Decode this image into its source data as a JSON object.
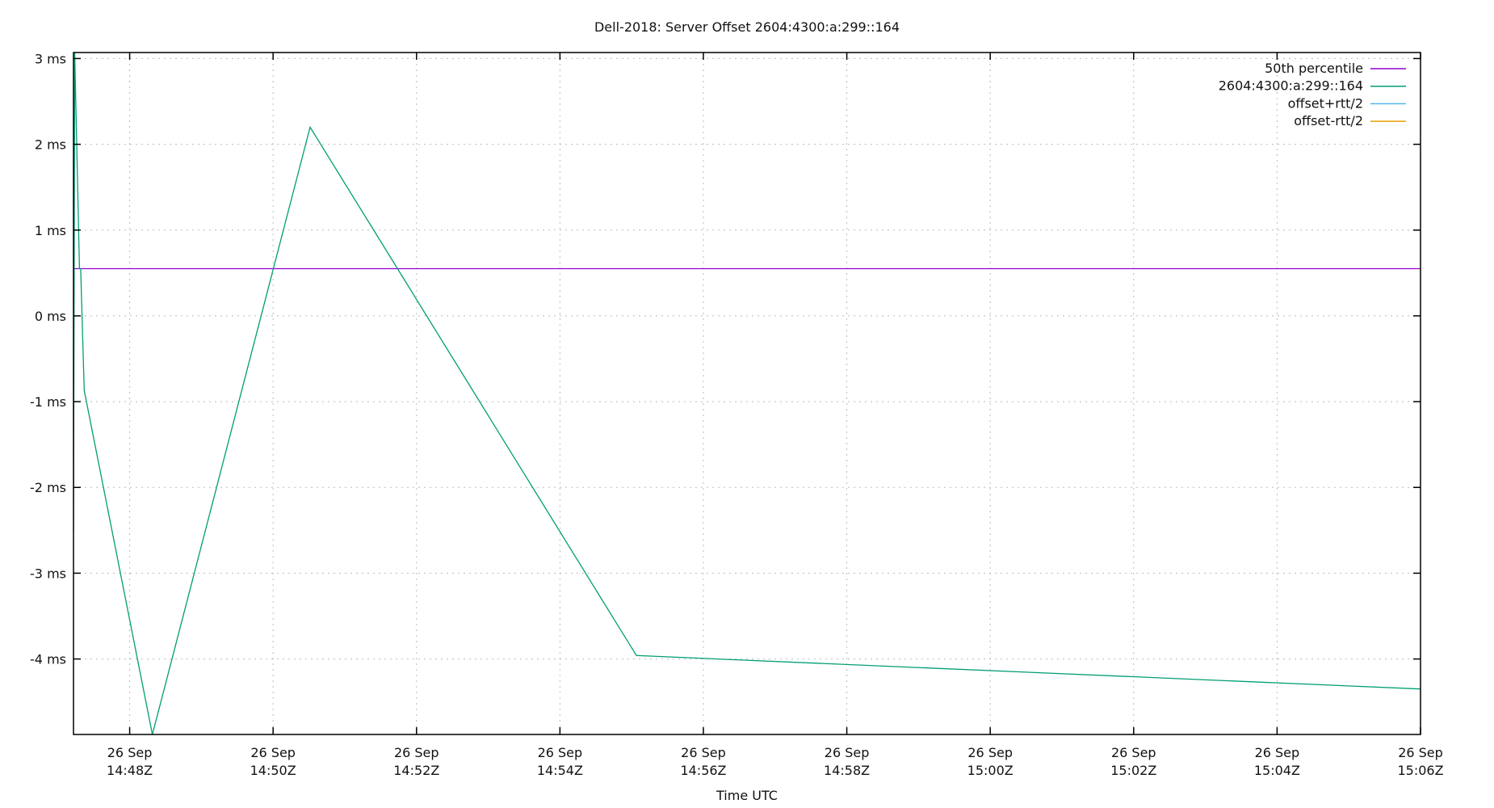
{
  "chart_data": {
    "type": "line",
    "title": "Dell-2018: Server Offset 2604:4300:a:299::164",
    "xlabel": "Time UTC",
    "ylabel": "",
    "xlim": [
      "2018-09-26T14:47:13Z",
      "2018-09-26T15:06:00Z"
    ],
    "ylim": [
      -4.88,
      3.07
    ],
    "y_unit": "ms",
    "grid": true,
    "legend_placement": "top-right",
    "yticks": [
      {
        "value": 3,
        "label": "3 ms"
      },
      {
        "value": 2,
        "label": "2 ms"
      },
      {
        "value": 1,
        "label": "1 ms"
      },
      {
        "value": 0,
        "label": "0 ms"
      },
      {
        "value": -1,
        "label": "-1 ms"
      },
      {
        "value": -2,
        "label": "-2 ms"
      },
      {
        "value": -3,
        "label": "-3 ms"
      },
      {
        "value": -4,
        "label": "-4 ms"
      }
    ],
    "xticks": [
      {
        "value": "2018-09-26T14:48:00Z",
        "line1": "26 Sep",
        "line2": "14:48Z"
      },
      {
        "value": "2018-09-26T14:50:00Z",
        "line1": "26 Sep",
        "line2": "14:50Z"
      },
      {
        "value": "2018-09-26T14:52:00Z",
        "line1": "26 Sep",
        "line2": "14:52Z"
      },
      {
        "value": "2018-09-26T14:54:00Z",
        "line1": "26 Sep",
        "line2": "14:54Z"
      },
      {
        "value": "2018-09-26T14:56:00Z",
        "line1": "26 Sep",
        "line2": "14:56Z"
      },
      {
        "value": "2018-09-26T14:58:00Z",
        "line1": "26 Sep",
        "line2": "14:58Z"
      },
      {
        "value": "2018-09-26T15:00:00Z",
        "line1": "26 Sep",
        "line2": "15:00Z"
      },
      {
        "value": "2018-09-26T15:02:00Z",
        "line1": "26 Sep",
        "line2": "15:02Z"
      },
      {
        "value": "2018-09-26T15:04:00Z",
        "line1": "26 Sep",
        "line2": "15:04Z"
      },
      {
        "value": "2018-09-26T15:06:00Z",
        "line1": "26 Sep",
        "line2": "15:06Z"
      }
    ],
    "series": [
      {
        "name": "50th percentile",
        "color": "#9400d3",
        "x": [
          "2018-09-26T14:47:13Z",
          "2018-09-26T15:06:00Z"
        ],
        "y": [
          0.55,
          0.55
        ]
      },
      {
        "name": "2604:4300:a:299::164",
        "color": "#009e73",
        "x": [
          "2018-09-26T14:47:13Z",
          "2018-09-26T14:47:14Z",
          "2018-09-26T14:47:18Z",
          "2018-09-26T14:47:19Z",
          "2018-09-26T14:47:22Z",
          "2018-09-26T14:48:19Z",
          "2018-09-26T14:50:31Z",
          "2018-09-26T14:55:04Z",
          "2018-09-26T15:06:00Z"
        ],
        "y": [
          -2.5,
          3.07,
          0.55,
          0.55,
          -0.87,
          -4.88,
          2.2,
          -3.96,
          -4.35
        ]
      },
      {
        "name": "offset+rtt/2",
        "color": "#56b4e9",
        "x": [],
        "y": []
      },
      {
        "name": "offset-rtt/2",
        "color": "#e69f00",
        "x": [],
        "y": []
      }
    ]
  }
}
